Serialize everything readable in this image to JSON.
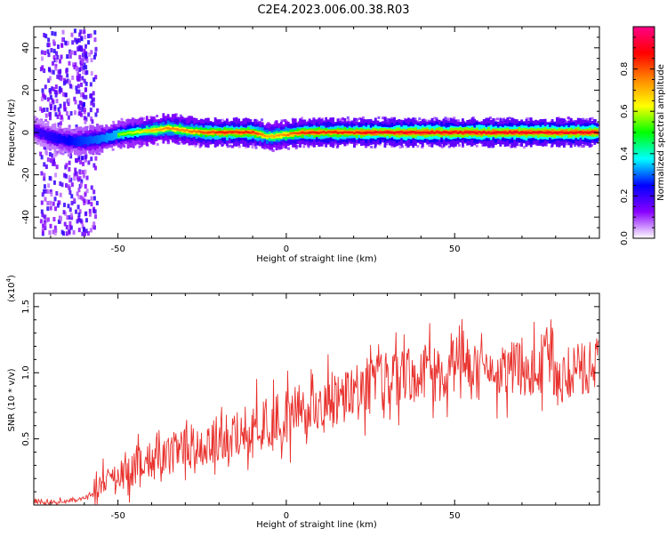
{
  "title": "C2E4.2023.006.00.38.R03",
  "chart_data": [
    {
      "type": "heatmap",
      "name": "spectrogram",
      "xlabel": "Height of straight line (km)",
      "ylabel": "Frequency (Hz)",
      "xlim": [
        -75,
        93
      ],
      "ylim": [
        -50,
        50
      ],
      "xticks": [
        -50,
        0,
        50
      ],
      "xtick_labels": [
        "-50",
        "0",
        "50"
      ],
      "yticks": [
        -40,
        -20,
        0,
        20,
        40
      ],
      "ytick_labels": [
        "-40",
        "-20",
        "0",
        "20",
        "40"
      ],
      "grid": false,
      "ridge": {
        "x": [
          -75,
          -70,
          -65,
          -60,
          -55,
          -50,
          -45,
          -40,
          -35,
          -30,
          -25,
          -20,
          -15,
          -10,
          -5,
          0,
          5,
          10,
          15,
          20,
          25,
          30,
          35,
          40,
          50,
          60,
          70,
          80,
          93
        ],
        "frequency_hz": [
          1,
          -2,
          -4,
          -4,
          -3,
          -1,
          0,
          1,
          2,
          1,
          0,
          0,
          0,
          0,
          -2,
          -1,
          0,
          0,
          0,
          0,
          0,
          0,
          0,
          0,
          0,
          0,
          0,
          0,
          0
        ],
        "amplitude": [
          0.3,
          0.35,
          0.4,
          0.45,
          0.5,
          0.55,
          0.6,
          0.7,
          0.75,
          0.75,
          0.8,
          0.85,
          0.85,
          0.85,
          0.7,
          0.75,
          0.85,
          0.85,
          0.85,
          0.85,
          0.9,
          0.9,
          0.9,
          0.9,
          0.9,
          0.9,
          0.9,
          0.9,
          0.9
        ]
      },
      "colorbar": {
        "label": "Normalized spectral amplitude",
        "range": [
          0,
          1
        ],
        "ticks": [
          0.0,
          0.2,
          0.4,
          0.6,
          0.8
        ],
        "tick_labels": [
          "0.0",
          "0.2",
          "0.4",
          "0.6",
          "0.8"
        ],
        "colors": [
          "#ffffff",
          "#8800ff",
          "#0000ff",
          "#00ffff",
          "#00ff00",
          "#ffff00",
          "#ff8800",
          "#ff0000",
          "#ff0088"
        ]
      }
    },
    {
      "type": "line",
      "name": "snr",
      "xlabel": "Height of straight line (km)",
      "ylabel": "SNR (10 * v/v)",
      "y_multiplier_label": "(x10",
      "y_multiplier_exp": "4",
      "y_multiplier_close": ")",
      "xlim": [
        -75,
        93
      ],
      "ylim": [
        0,
        1.6
      ],
      "xticks": [
        -50,
        0,
        50
      ],
      "xtick_labels": [
        "-50",
        "0",
        "50"
      ],
      "yticks": [
        0.5,
        1.0,
        1.5
      ],
      "ytick_labels": [
        "0.5",
        "1.0",
        "1.5"
      ],
      "grid": false,
      "series": [
        {
          "color": "#e8302c",
          "x": [
            -75,
            -70,
            -65,
            -60,
            -57,
            -55,
            -50,
            -45,
            -40,
            -35,
            -30,
            -25,
            -20,
            -15,
            -10,
            -5,
            0,
            5,
            10,
            15,
            20,
            25,
            30,
            35,
            40,
            45,
            50,
            52,
            55,
            60,
            65,
            70,
            75,
            78,
            80,
            85,
            90,
            93
          ],
          "y": [
            0.03,
            0.02,
            0.03,
            0.05,
            0.08,
            0.15,
            0.22,
            0.28,
            0.35,
            0.38,
            0.42,
            0.45,
            0.5,
            0.55,
            0.6,
            0.62,
            0.65,
            0.7,
            0.75,
            0.8,
            0.85,
            0.9,
            0.95,
            0.98,
            1.0,
            1.0,
            1.05,
            1.2,
            1.0,
            0.95,
            1.0,
            1.05,
            1.0,
            1.3,
            0.95,
            1.0,
            1.05,
            1.1
          ]
        }
      ]
    }
  ]
}
